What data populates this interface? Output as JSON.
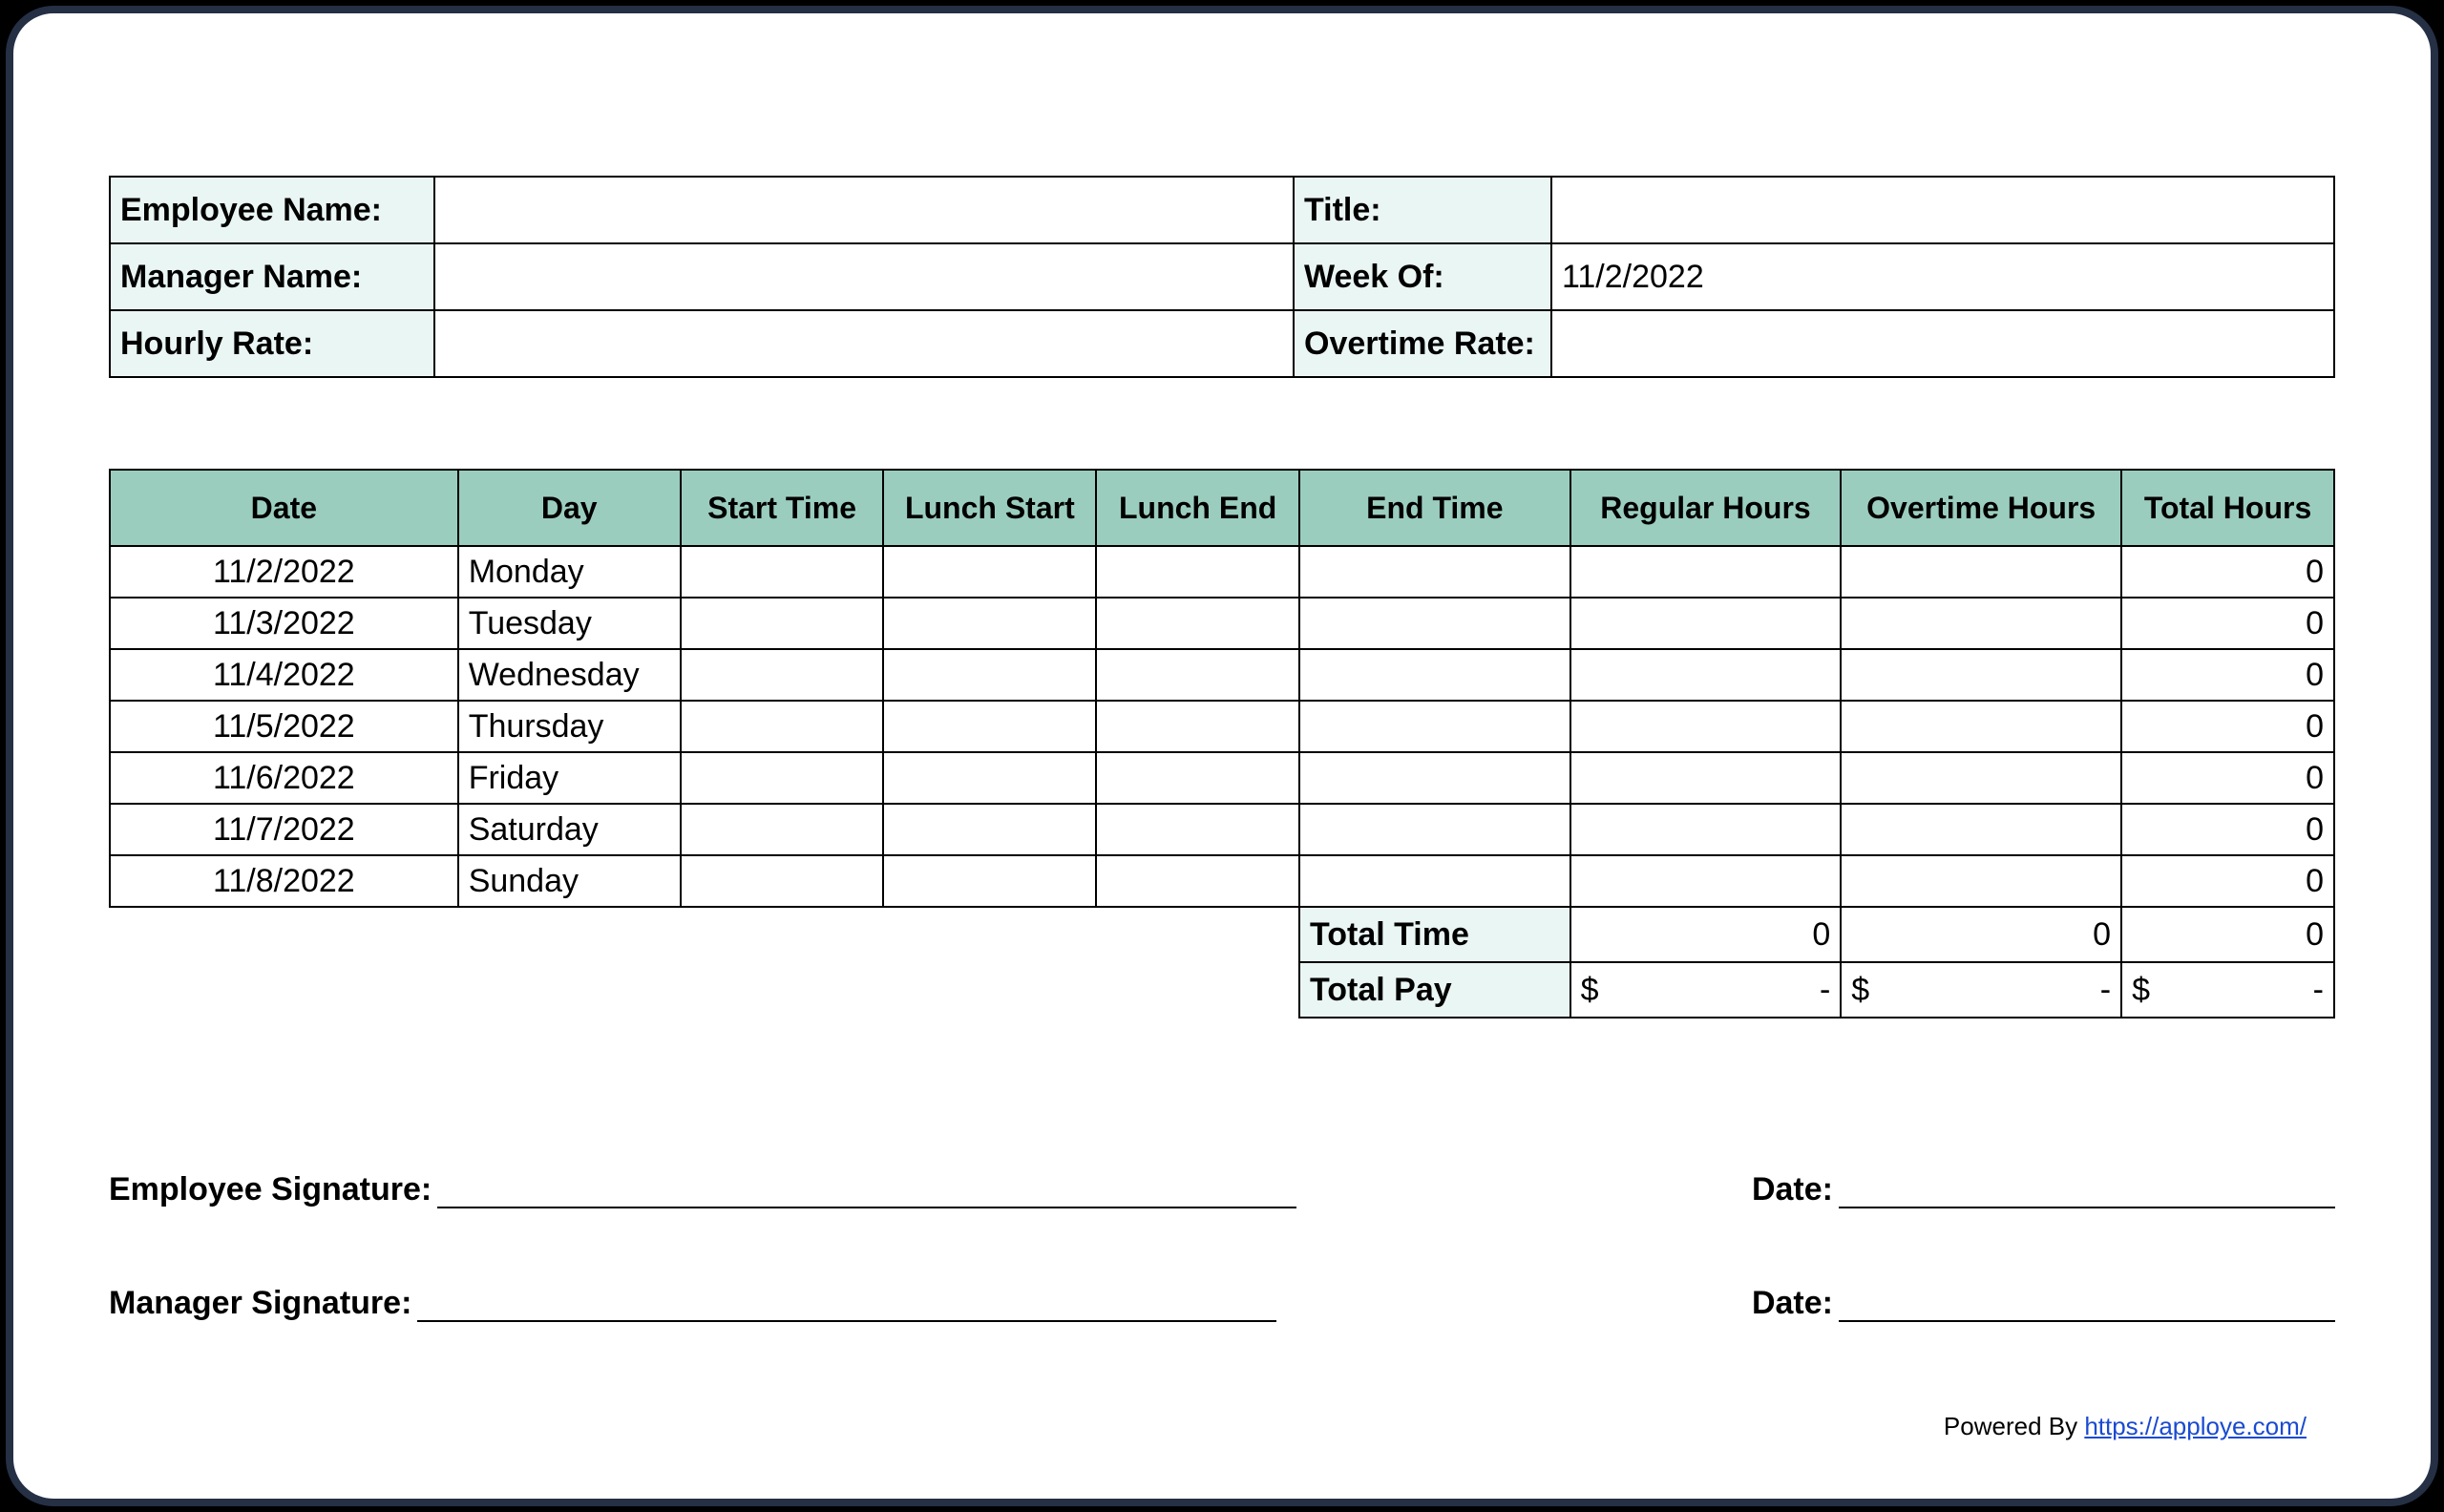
{
  "colors": {
    "page_border": "#253045",
    "header_cell_bg": "#eaf6f4",
    "table_header_bg": "#9bcdbf",
    "cell_border": "#000000",
    "background": "#ffffff",
    "link": "#1a4bd1"
  },
  "typography": {
    "base_font": "Arial",
    "label_size_pt": 26,
    "header_size_pt": 24,
    "label_weight": 700
  },
  "header": {
    "employee_name_label": "Employee Name:",
    "employee_name_value": "",
    "title_label": "Title:",
    "title_value": "",
    "manager_name_label": "Manager Name:",
    "manager_name_value": "",
    "week_of_label": "Week Of:",
    "week_of_value": "11/2/2022",
    "hourly_rate_label": "Hourly Rate:",
    "hourly_rate_value": "",
    "overtime_rate_label": "Overtime Rate:",
    "overtime_rate_value": ""
  },
  "timesheet": {
    "columns": {
      "date": "Date",
      "day": "Day",
      "start_time": "Start Time",
      "lunch_start": "Lunch Start",
      "lunch_end": "Lunch End",
      "end_time": "End Time",
      "regular_hours": "Regular Hours",
      "overtime_hours": "Overtime Hours",
      "total_hours": "Total Hours"
    },
    "rows": [
      {
        "date": "11/2/2022",
        "day": "Monday",
        "start_time": "",
        "lunch_start": "",
        "lunch_end": "",
        "end_time": "",
        "regular_hours": "",
        "overtime_hours": "",
        "total_hours": "0"
      },
      {
        "date": "11/3/2022",
        "day": "Tuesday",
        "start_time": "",
        "lunch_start": "",
        "lunch_end": "",
        "end_time": "",
        "regular_hours": "",
        "overtime_hours": "",
        "total_hours": "0"
      },
      {
        "date": "11/4/2022",
        "day": "Wednesday",
        "start_time": "",
        "lunch_start": "",
        "lunch_end": "",
        "end_time": "",
        "regular_hours": "",
        "overtime_hours": "",
        "total_hours": "0"
      },
      {
        "date": "11/5/2022",
        "day": "Thursday",
        "start_time": "",
        "lunch_start": "",
        "lunch_end": "",
        "end_time": "",
        "regular_hours": "",
        "overtime_hours": "",
        "total_hours": "0"
      },
      {
        "date": "11/6/2022",
        "day": "Friday",
        "start_time": "",
        "lunch_start": "",
        "lunch_end": "",
        "end_time": "",
        "regular_hours": "",
        "overtime_hours": "",
        "total_hours": "0"
      },
      {
        "date": "11/7/2022",
        "day": "Saturday",
        "start_time": "",
        "lunch_start": "",
        "lunch_end": "",
        "end_time": "",
        "regular_hours": "",
        "overtime_hours": "",
        "total_hours": "0"
      },
      {
        "date": "11/8/2022",
        "day": "Sunday",
        "start_time": "",
        "lunch_start": "",
        "lunch_end": "",
        "end_time": "",
        "regular_hours": "",
        "overtime_hours": "",
        "total_hours": "0"
      }
    ],
    "total_time_label": "Total Time",
    "total_time": {
      "regular": "0",
      "overtime": "0",
      "total": "0"
    },
    "total_pay_label": "Total Pay",
    "total_pay": {
      "regular_symbol": "$",
      "regular_value": "-",
      "overtime_symbol": "$",
      "overtime_value": "-",
      "total_symbol": "$",
      "total_value": "-"
    }
  },
  "signatures": {
    "employee_label": "Employee Signature:",
    "manager_label": "Manager Signature:",
    "date_label": "Date:"
  },
  "footer": {
    "powered_by": "Powered By ",
    "link_text": "https://apploye.com/",
    "link_href": "https://apploye.com/"
  }
}
